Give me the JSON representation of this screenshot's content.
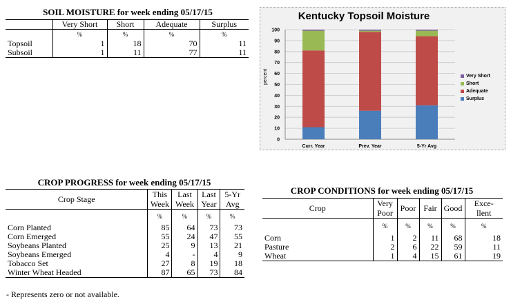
{
  "soil": {
    "title": "SOIL MOISTURE for week ending 05/17/15",
    "headers": [
      "Very Short",
      "Short",
      "Adequate",
      "Surplus"
    ],
    "units": [
      "%",
      "%",
      "%",
      "%"
    ],
    "rows": [
      {
        "label": "Topsoil",
        "values": [
          "1",
          "18",
          "70",
          "11"
        ]
      },
      {
        "label": "Subsoil",
        "values": [
          "1",
          "11",
          "77",
          "11"
        ]
      }
    ]
  },
  "chart_data": {
    "type": "bar",
    "stacked": true,
    "title": "Kentucky Topsoil Moisture",
    "ylabel": "percent",
    "xlabel": "",
    "ylim": [
      0,
      100
    ],
    "yticks": [
      "0",
      "10",
      "20",
      "30",
      "40",
      "50",
      "60",
      "70",
      "80",
      "90",
      "100"
    ],
    "categories": [
      "Curr. Year",
      "Prev. Year",
      "5-Yr Avg"
    ],
    "series": [
      {
        "name": "Surplus",
        "color": "#4a7ebb",
        "values": [
          11,
          26,
          31
        ]
      },
      {
        "name": "Adequate",
        "color": "#be4b48",
        "values": [
          70,
          72,
          63
        ]
      },
      {
        "name": "Short",
        "color": "#98b954",
        "values": [
          18,
          1,
          5
        ]
      },
      {
        "name": "Very Short",
        "color": "#7d60a0",
        "values": [
          1,
          1,
          1
        ]
      }
    ],
    "legend_order": [
      "Very Short",
      "Short",
      "Adequate",
      "Surplus"
    ],
    "legend_position": "right",
    "grid": true
  },
  "progress": {
    "title": "CROP PROGRESS for week ending 05/17/15",
    "stage_header": "Crop Stage",
    "headers": [
      [
        "This",
        "Week"
      ],
      [
        "Last",
        "Week"
      ],
      [
        "Last",
        "Year"
      ],
      [
        "5-Yr",
        "Avg"
      ]
    ],
    "units": [
      "%",
      "%",
      "%",
      "%"
    ],
    "rows": [
      {
        "label": "Corn Planted",
        "values": [
          "85",
          "64",
          "73",
          "73"
        ]
      },
      {
        "label": "Corn Emerged",
        "values": [
          "55",
          "24",
          "47",
          "55"
        ]
      },
      {
        "label": "Soybeans Planted",
        "values": [
          "25",
          "9",
          "13",
          "21"
        ]
      },
      {
        "label": "Soybeans Emerged",
        "values": [
          "4",
          "-",
          "4",
          "9"
        ]
      },
      {
        "label": "Tobacco Set",
        "values": [
          "27",
          "8",
          "19",
          "18"
        ]
      },
      {
        "label": "Winter Wheat Headed",
        "values": [
          "87",
          "65",
          "73",
          "84"
        ]
      }
    ],
    "footnote": "- Represents zero or not available."
  },
  "conditions": {
    "title": "CROP CONDITIONS for week ending 05/17/15",
    "crop_header": "Crop",
    "headers": [
      [
        "Very",
        "Poor"
      ],
      [
        "Poor"
      ],
      [
        "Fair"
      ],
      [
        "Good"
      ],
      [
        "Exce-",
        "llent"
      ]
    ],
    "units": [
      "%",
      "%",
      "%",
      "%",
      "%"
    ],
    "rows": [
      {
        "label": "Corn",
        "values": [
          "1",
          "2",
          "11",
          "68",
          "18"
        ]
      },
      {
        "label": "Pasture",
        "values": [
          "2",
          "6",
          "22",
          "59",
          "11"
        ]
      },
      {
        "label": "Wheat",
        "values": [
          "1",
          "4",
          "15",
          "61",
          "19"
        ]
      }
    ]
  }
}
